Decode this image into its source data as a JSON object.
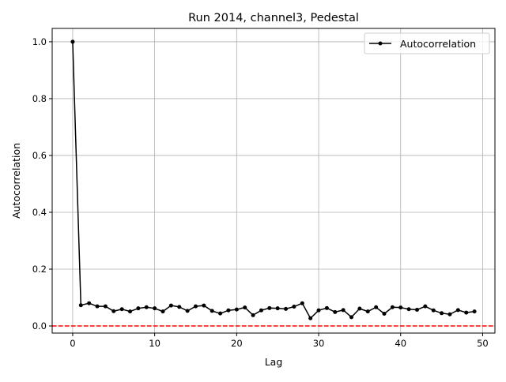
{
  "chart_data": {
    "type": "line",
    "title": "Run 2014, channel3, Pedestal",
    "xlabel": "Lag",
    "ylabel": "Autocorrelation",
    "xlim": [
      -2.5,
      51.5
    ],
    "ylim": [
      -0.025,
      1.047
    ],
    "xticks": [
      0,
      10,
      20,
      30,
      40,
      50
    ],
    "yticks": [
      0.0,
      0.2,
      0.4,
      0.6,
      0.8,
      1.0
    ],
    "ytick_labels": [
      "0.0",
      "0.2",
      "0.4",
      "0.6",
      "0.8",
      "1.0"
    ],
    "grid": true,
    "legend_position": "top-right",
    "series": [
      {
        "name": "Autocorrelation",
        "color": "#000000",
        "marker": "dot",
        "x": [
          0,
          1,
          2,
          3,
          4,
          5,
          6,
          7,
          8,
          9,
          10,
          11,
          12,
          13,
          14,
          15,
          16,
          17,
          18,
          19,
          20,
          21,
          22,
          23,
          24,
          25,
          26,
          27,
          28,
          29,
          30,
          31,
          32,
          33,
          34,
          35,
          36,
          37,
          38,
          39,
          40,
          41,
          42,
          43,
          44,
          45,
          46,
          47,
          48,
          49
        ],
        "y": [
          1.0,
          0.073,
          0.08,
          0.069,
          0.069,
          0.052,
          0.059,
          0.051,
          0.062,
          0.066,
          0.062,
          0.051,
          0.072,
          0.067,
          0.053,
          0.069,
          0.072,
          0.053,
          0.044,
          0.055,
          0.058,
          0.065,
          0.038,
          0.055,
          0.063,
          0.062,
          0.06,
          0.068,
          0.08,
          0.027,
          0.055,
          0.063,
          0.049,
          0.056,
          0.031,
          0.061,
          0.051,
          0.066,
          0.043,
          0.066,
          0.065,
          0.059,
          0.057,
          0.069,
          0.055,
          0.045,
          0.041,
          0.056,
          0.047,
          0.051
        ]
      }
    ],
    "reference_line": {
      "y": 0.0,
      "color": "#ff0000",
      "style": "dashed"
    }
  }
}
